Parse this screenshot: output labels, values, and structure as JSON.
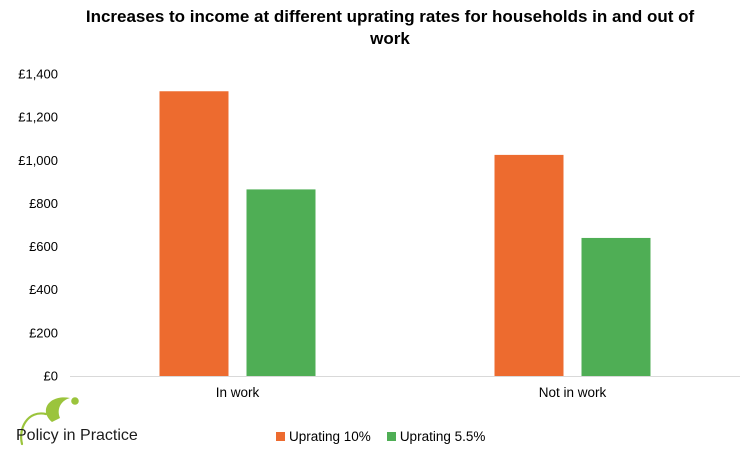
{
  "chart_data": {
    "type": "bar",
    "title": "Increases to income at different uprating rates for households in and out of work",
    "categories": [
      "In work",
      "Not in work"
    ],
    "series": [
      {
        "name": "Uprating 10%",
        "color": "#ed6b2f",
        "values": [
          1320,
          1025
        ]
      },
      {
        "name": "Uprating 5.5%",
        "color": "#4fae55",
        "values": [
          865,
          640
        ]
      }
    ],
    "ylim": [
      0,
      1400
    ],
    "yticks": [
      "£0",
      "£200",
      "£400",
      "£600",
      "£800",
      "£1,000",
      "£1,200",
      "£1,400"
    ],
    "legend_position": "bottom",
    "grid": false
  },
  "branding": {
    "logo_text": "Policy in Practice",
    "logo_icon": "leaf-swirl-icon",
    "colors": {
      "logo_green": "#9bc43c",
      "logo_text": "#1c1c1c"
    }
  }
}
